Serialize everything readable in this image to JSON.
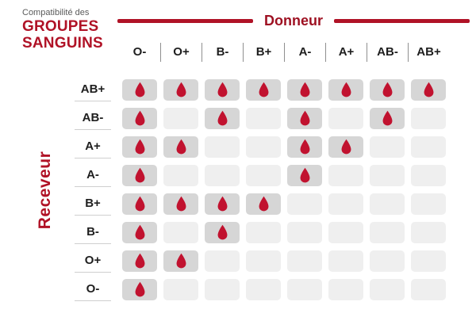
{
  "title": {
    "prefix": "Compatibilité des",
    "line1": "GROUPES",
    "line2": "SANGUINS"
  },
  "donor_axis_label": "Donneur",
  "receiver_axis_label": "Receveur",
  "chart_data": {
    "type": "table",
    "title": "Compatibilité des groupes sanguins",
    "columns_axis_label": "Donneur",
    "rows_axis_label": "Receveur",
    "donors": [
      "O-",
      "O+",
      "B-",
      "B+",
      "A-",
      "A+",
      "AB-",
      "AB+"
    ],
    "receivers": [
      "AB+",
      "AB-",
      "A+",
      "A-",
      "B+",
      "B-",
      "O+",
      "O-"
    ],
    "matrix": [
      [
        1,
        1,
        1,
        1,
        1,
        1,
        1,
        1
      ],
      [
        1,
        0,
        1,
        0,
        1,
        0,
        1,
        0
      ],
      [
        1,
        1,
        0,
        0,
        1,
        1,
        0,
        0
      ],
      [
        1,
        0,
        0,
        0,
        1,
        0,
        0,
        0
      ],
      [
        1,
        1,
        1,
        1,
        0,
        0,
        0,
        0
      ],
      [
        1,
        0,
        1,
        0,
        0,
        0,
        0,
        0
      ],
      [
        1,
        1,
        0,
        0,
        0,
        0,
        0,
        0
      ],
      [
        1,
        0,
        0,
        0,
        0,
        0,
        0,
        0
      ]
    ],
    "compatible_marker": "blood-drop-icon"
  },
  "colors": {
    "accent_red": "#b01226",
    "donor_red": "#9e1122",
    "drop_red": "#c1122f",
    "compatible_cell": "#d6d6d6",
    "empty_cell": "#efefef",
    "text_dark": "#1e1e1e",
    "muted_text": "#5a5a5a"
  }
}
